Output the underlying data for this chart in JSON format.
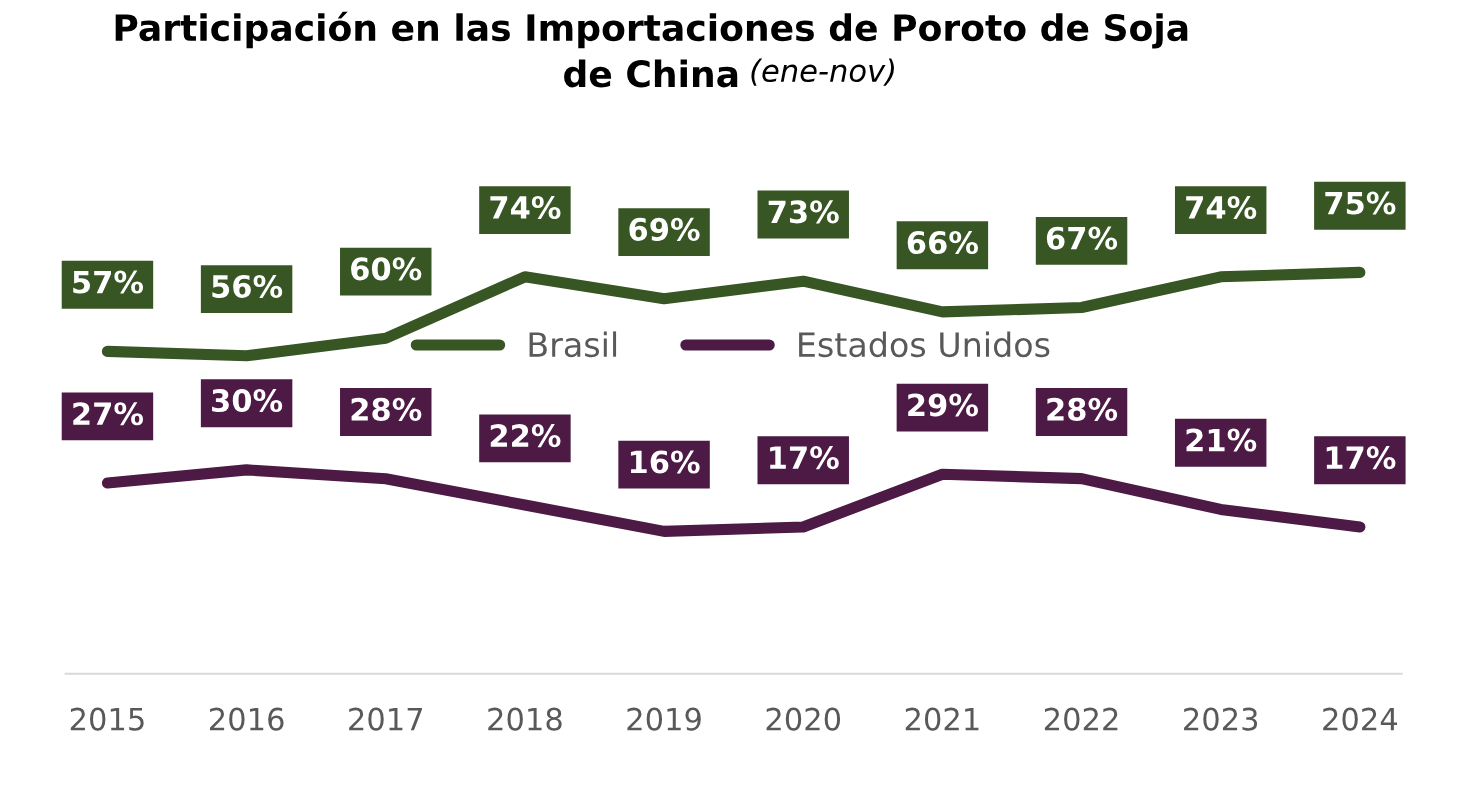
{
  "chart_data": {
    "type": "line",
    "title": "Participación en las Importaciones de Poroto de Soja de China",
    "subtitle": "(ene-nov)",
    "categories": [
      "2015",
      "2016",
      "2017",
      "2018",
      "2019",
      "2020",
      "2021",
      "2022",
      "2023",
      "2024"
    ],
    "series": [
      {
        "name": "Brasil",
        "color": "#375623",
        "values": [
          57,
          56,
          60,
          74,
          69,
          73,
          66,
          67,
          74,
          75
        ],
        "value_labels": [
          "57%",
          "56%",
          "60%",
          "74%",
          "69%",
          "73%",
          "66%",
          "67%",
          "74%",
          "75%"
        ]
      },
      {
        "name": "Estados Unidos",
        "color": "#4d1a45",
        "values": [
          27,
          30,
          28,
          22,
          16,
          17,
          29,
          28,
          21,
          17
        ],
        "value_labels": [
          "27%",
          "30%",
          "28%",
          "22%",
          "16%",
          "17%",
          "29%",
          "28%",
          "21%",
          "17%"
        ]
      }
    ],
    "tick_labels": "x",
    "grid": false,
    "legend": "center",
    "marker": "none",
    "line_style": "solid"
  }
}
